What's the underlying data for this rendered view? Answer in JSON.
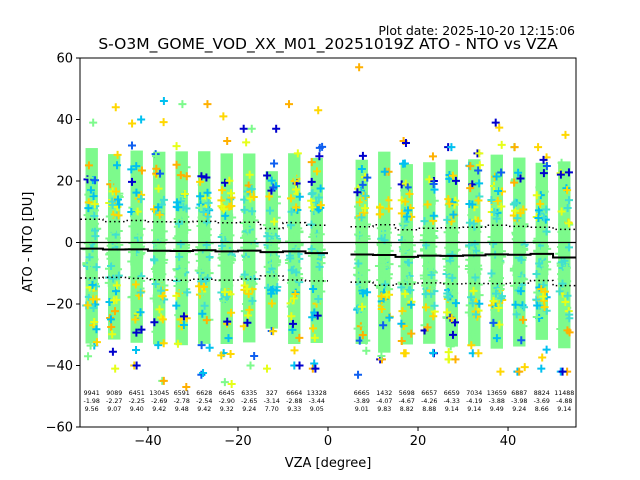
{
  "chart_data": {
    "type": "scatter",
    "title": "S-O3M_GOME_VOD_XX_M01_20251019Z ATO - NTO vs VZA",
    "subtitle": "Plot date: 2025-10-20 12:15:06",
    "xlabel": "VZA [degree]",
    "ylabel": "ATO - NTO [DU]",
    "xlim": [
      -55.1,
      55.1
    ],
    "ylim": [
      -60,
      60
    ],
    "xticks": [
      -40,
      -20,
      0,
      20,
      40
    ],
    "xtick_labels": [
      "−40",
      "−20",
      "0",
      "20",
      "40"
    ],
    "yticks": [
      -60,
      -40,
      -20,
      0,
      20,
      40,
      60
    ],
    "ytick_labels": [
      "−60",
      "−40",
      "−20",
      "0",
      "20",
      "40",
      "60"
    ],
    "grid": false,
    "zero_line": 0,
    "bin_width": 5,
    "bins": [
      {
        "center": -52.5,
        "count": "9941",
        "mean": -1.98,
        "std": 9.56,
        "min": -37,
        "max": 39
      },
      {
        "center": -47.5,
        "count": "9089",
        "mean": -2.27,
        "std": 9.07,
        "min": -41,
        "max": 44
      },
      {
        "center": -42.5,
        "count": "6451",
        "mean": -2.25,
        "std": 9.4,
        "min": -40,
        "max": 40
      },
      {
        "center": -37.5,
        "count": "13045",
        "mean": -2.69,
        "std": 9.42,
        "min": -45,
        "max": 46
      },
      {
        "center": -32.5,
        "count": "6591",
        "mean": -2.78,
        "std": 9.48,
        "min": -47,
        "max": 45
      },
      {
        "center": -27.5,
        "count": "6628",
        "mean": -2.54,
        "std": 9.42,
        "min": -43,
        "max": 45
      },
      {
        "center": -22.5,
        "count": "6645",
        "mean": -2.9,
        "std": 9.32,
        "min": -46,
        "max": 41
      },
      {
        "center": -17.5,
        "count": "6335",
        "mean": -2.65,
        "std": 9.24,
        "min": -40,
        "max": 37
      },
      {
        "center": -12.5,
        "count": "327",
        "mean": -3.14,
        "std": 7.7,
        "min": -41,
        "max": 37
      },
      {
        "center": -7.5,
        "count": "6664",
        "mean": -2.88,
        "std": 9.33,
        "min": -40,
        "max": 45
      },
      {
        "center": -2.5,
        "count": "13328",
        "mean": -3.44,
        "std": 9.05,
        "min": -41,
        "max": 43
      },
      {
        "center": 7.5,
        "count": "6665",
        "mean": -3.89,
        "std": 9.01,
        "min": -43,
        "max": 57
      },
      {
        "center": 12.5,
        "count": "1432",
        "mean": -4.07,
        "std": 9.83,
        "min": -38,
        "max": 23
      },
      {
        "center": 17.5,
        "count": "5698",
        "mean": -4.67,
        "std": 8.82,
        "min": -36,
        "max": 33
      },
      {
        "center": 22.5,
        "count": "6657",
        "mean": -4.26,
        "std": 8.88,
        "min": -36,
        "max": 28
      },
      {
        "center": 27.5,
        "count": "6659",
        "mean": -4.33,
        "std": 9.14,
        "min": -38,
        "max": 31
      },
      {
        "center": 32.5,
        "count": "7034",
        "mean": -4.19,
        "std": 9.14,
        "min": -36,
        "max": 29
      },
      {
        "center": 37.5,
        "count": "13659",
        "mean": -3.88,
        "std": 9.49,
        "min": -42,
        "max": 39
      },
      {
        "center": 42.5,
        "count": "6887",
        "mean": -3.98,
        "std": 9.24,
        "min": -42,
        "max": 31
      },
      {
        "center": 47.5,
        "count": "8824",
        "mean": -3.69,
        "std": 8.66,
        "min": -41,
        "max": 31
      },
      {
        "center": 52.5,
        "count": "11488",
        "mean": -4.88,
        "std": 9.14,
        "min": -42,
        "max": 35
      }
    ],
    "series": [
      {
        "name": "ATO - NTO samples",
        "marker": "+",
        "colormap": [
          "#0000cd",
          "#0f5ff0",
          "#00c0f0",
          "#40e0d0",
          "#7dfa8c",
          "#e6ff18",
          "#ffd700",
          "#ffb000"
        ]
      },
      {
        "name": "mean",
        "style": "solid",
        "color": "#000000"
      },
      {
        "name": "mean ± std",
        "style": "dotted",
        "color": "#000000"
      }
    ]
  }
}
